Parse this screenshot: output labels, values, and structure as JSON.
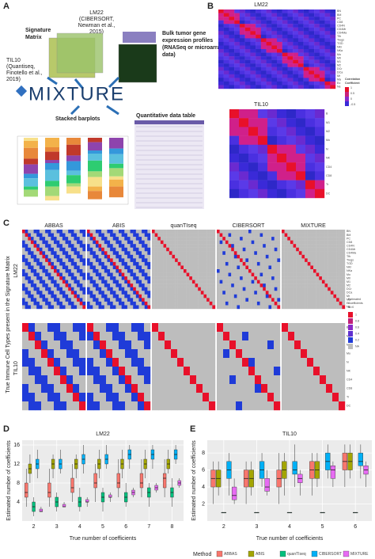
{
  "panel_labels": [
    "A",
    "B",
    "C",
    "D",
    "E"
  ],
  "panel_a": {
    "signature_label": [
      "Signature",
      "Matrix"
    ],
    "lm22_label": [
      "LM22",
      "(CIBERSORT,",
      "Newman et al.,",
      "2015)"
    ],
    "bulk_label": [
      "Bulk tumor gene",
      "expression profiles",
      "(RNASeq or microarray",
      "data)"
    ],
    "til10_label": [
      "TIL10",
      "(Quantiseq,",
      "Finotello et al.,",
      "2019)"
    ],
    "logo": "MIXTURE",
    "stacked_label": "Stacked barplots",
    "table_label": "Quantitative data table"
  },
  "panel_b": {
    "titles": [
      "LM22",
      "TIL10"
    ],
    "legend_title": [
      "Correlation",
      "Coefficient"
    ],
    "legend_ticks": [
      "1",
      "0.5",
      "0",
      "-0.5"
    ]
  },
  "panel_c": {
    "methods": [
      "ABBAS",
      "ABIS",
      "quanTIseq",
      "CIBERSORT",
      "MIXTURE"
    ],
    "rows": [
      "LM22",
      "TIL10"
    ],
    "y_label": "True Immune Cell Types present in the Signature Matrix",
    "legend_title": [
      "Estimated",
      "Coefficients",
      "Bi>0"
    ],
    "legend_ticks": [
      "1",
      "0.8",
      "0.6",
      "0.4",
      "0.2",
      "NA"
    ],
    "lm22_types": [
      "BN",
      "BM",
      "PC",
      "CD8",
      "CD4N",
      "CD4Mr",
      "CD4Ma",
      "Tfh",
      "Tregs",
      "TGD",
      "NKr",
      "NKa",
      "Mo",
      "M0",
      "M1",
      "M2",
      "DCr",
      "DCa",
      "Mr",
      "Ma",
      "Eo",
      "Ne"
    ],
    "til10_types": [
      "B",
      "M1",
      "M2",
      "Mo",
      "N",
      "NK",
      "CD4",
      "CD8",
      "Tr",
      "DC"
    ]
  },
  "legend_title": "Method",
  "chart_data": [
    {
      "type": "box",
      "title": "LM22",
      "x_label": "True number of coefficients",
      "y_label": "Estimated number of coefficients",
      "categories": [
        "2",
        "3",
        "4",
        "5",
        "6",
        "7",
        "8"
      ],
      "ylim": [
        0,
        17
      ],
      "yticks": [
        4,
        8,
        12,
        16
      ],
      "series": [
        {
          "name": "ABBAS",
          "color": "#f8766d",
          "median": [
            6,
            6,
            7,
            8,
            8,
            8,
            9
          ],
          "q1": [
            5,
            5,
            6,
            7,
            7,
            7,
            7
          ],
          "q3": [
            8,
            8,
            9,
            10,
            10,
            10,
            10
          ],
          "low": [
            3,
            3,
            4,
            4,
            5,
            5,
            5
          ],
          "high": [
            11,
            11,
            12,
            12,
            13,
            13,
            13
          ]
        },
        {
          "name": "ABIS",
          "color": "#a3a500",
          "median": [
            11,
            12,
            12,
            12,
            12,
            12,
            12
          ],
          "q1": [
            10,
            11,
            11,
            11,
            11,
            11,
            11
          ],
          "q3": [
            12,
            13,
            13,
            13,
            13,
            13,
            13
          ],
          "low": [
            8,
            9,
            9,
            9,
            9,
            9,
            10
          ],
          "high": [
            14,
            14,
            14,
            15,
            15,
            15,
            15
          ]
        },
        {
          "name": "quanTIseq",
          "color": "#00bf7d",
          "median": [
            3,
            4,
            4,
            5,
            5,
            6,
            6
          ],
          "q1": [
            2,
            3,
            3,
            4,
            4,
            5,
            5
          ],
          "q3": [
            4,
            5,
            5,
            6,
            6,
            7,
            7
          ],
          "low": [
            1,
            2,
            2,
            2,
            3,
            3,
            3
          ],
          "high": [
            5,
            6,
            7,
            7,
            8,
            8,
            9
          ]
        },
        {
          "name": "CIBERSORT",
          "color": "#00b0f6",
          "median": [
            12,
            12,
            13,
            13,
            14,
            14,
            14
          ],
          "q1": [
            11,
            11,
            12,
            12,
            13,
            13,
            13
          ],
          "q3": [
            13,
            13,
            14,
            14,
            15,
            15,
            15
          ],
          "low": [
            9,
            10,
            10,
            11,
            11,
            11,
            12
          ],
          "high": [
            15,
            15,
            16,
            16,
            16,
            16,
            16
          ]
        },
        {
          "name": "MIXTURE",
          "color": "#e76bf3",
          "median": [
            2,
            3,
            4,
            5,
            6,
            7,
            8
          ],
          "q1": [
            2,
            3,
            4,
            5,
            5.5,
            6.5,
            7.5
          ],
          "q3": [
            2.5,
            3.5,
            4.5,
            5.5,
            6.5,
            7.5,
            8.5
          ],
          "low": [
            2,
            3,
            3,
            4,
            5,
            6,
            7
          ],
          "high": [
            3,
            4,
            5,
            6,
            7,
            8,
            9
          ]
        }
      ]
    },
    {
      "type": "box",
      "title": "TIL10",
      "x_label": "True number of coefficients",
      "y_label": "Estimated number of coefficients",
      "categories": [
        "2",
        "3",
        "4",
        "5",
        "6"
      ],
      "ylim": [
        0,
        9.5
      ],
      "yticks": [
        2,
        4,
        6,
        8
      ],
      "series": [
        {
          "name": "ABBAS",
          "color": "#f8766d",
          "median": [
            5,
            5,
            5,
            6,
            7
          ],
          "q1": [
            4,
            4,
            4,
            5,
            6
          ],
          "q3": [
            6,
            6,
            6,
            7,
            8
          ],
          "low": [
            2,
            2,
            2,
            3,
            4
          ],
          "high": [
            7,
            7,
            8,
            8,
            9
          ]
        },
        {
          "name": "ABIS",
          "color": "#a3a500",
          "median": [
            5,
            5,
            6,
            6,
            7
          ],
          "q1": [
            4,
            4,
            5,
            5,
            6
          ],
          "q3": [
            6,
            6,
            7,
            7,
            8
          ],
          "low": [
            3,
            3,
            3,
            4,
            5
          ],
          "high": [
            7,
            7,
            8,
            8,
            9
          ]
        },
        {
          "name": "quanTIseq",
          "color": "#00bf7d",
          "median": [
            1,
            1,
            1,
            1,
            1
          ],
          "q1": [
            1,
            1,
            1,
            1,
            1
          ],
          "q3": [
            1,
            1,
            1,
            1,
            1
          ],
          "low": [
            1,
            1,
            1,
            1,
            1
          ],
          "high": [
            1,
            1,
            1,
            1,
            1
          ]
        },
        {
          "name": "CIBERSORT",
          "color": "#00b0f6",
          "median": [
            6,
            6,
            6,
            7,
            7
          ],
          "q1": [
            5,
            5,
            5.5,
            6,
            6.5
          ],
          "q3": [
            7,
            7,
            7,
            8,
            8
          ],
          "low": [
            3,
            4,
            4,
            5,
            5
          ],
          "high": [
            8,
            8,
            9,
            9,
            9
          ]
        },
        {
          "name": "MIXTURE",
          "color": "#e76bf3",
          "median": [
            3,
            4,
            5,
            6,
            6
          ],
          "q1": [
            2.5,
            3.5,
            4.5,
            5,
            5.5
          ],
          "q3": [
            4,
            5,
            5.5,
            6.5,
            6.5
          ],
          "low": [
            2,
            3,
            3,
            4,
            4
          ],
          "high": [
            5,
            6,
            6,
            7,
            7
          ]
        }
      ]
    }
  ]
}
